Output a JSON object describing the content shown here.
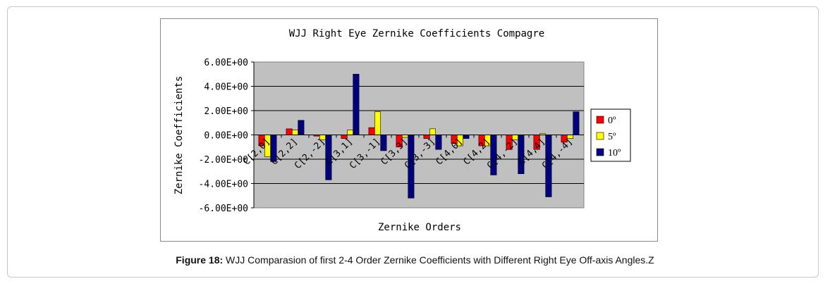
{
  "caption": {
    "label": "Figure 18:",
    "text": "WJJ Comparasion of first 2-4 Order Zernike Coefficients with Different Right Eye Off-axis Angles.Z"
  },
  "chart_data": {
    "type": "bar",
    "title": "WJJ Right Eye Zernike Coefficients Compagre",
    "xlabel": "Zernike Orders",
    "ylabel": "Zernike Coefficients",
    "ylim": [
      -6,
      6
    ],
    "yticks": [
      6,
      4,
      2,
      0,
      -2,
      -4,
      -6
    ],
    "ytick_labels": [
      "6.00E+00",
      "4.00E+00",
      "2.00E+00",
      "0.00E+00",
      "-2.00E+00",
      "-4.00E+00",
      "-6.00E+00"
    ],
    "grid": true,
    "legend_position": "right",
    "categories": [
      "C[2,0]",
      "C[2,2]",
      "C[2,-2]",
      "C[3,1]",
      "C[3,-1]",
      "C[3,3]",
      "C[3,-3]",
      "C[4,0]",
      "C[4,2]",
      "C[4,-2]",
      "C[4,4]",
      "C[4,-4]"
    ],
    "series": [
      {
        "name": "0º",
        "color": "#ff0000",
        "values": [
          -0.9,
          0.5,
          -0.1,
          -0.3,
          0.6,
          -1.0,
          -0.3,
          -0.7,
          -0.9,
          -1.2,
          -1.2,
          -0.6
        ]
      },
      {
        "name": "5º",
        "color": "#ffff00",
        "values": [
          -1.8,
          0.4,
          -0.4,
          0.4,
          1.9,
          -0.2,
          0.5,
          -0.9,
          -0.9,
          -0.4,
          0.1,
          -0.3
        ]
      },
      {
        "name": "10º",
        "color": "#000080",
        "values": [
          -2.2,
          1.2,
          -3.7,
          5.0,
          -1.3,
          -5.2,
          -1.2,
          -0.3,
          -3.3,
          -3.2,
          -5.1,
          1.9
        ]
      }
    ]
  }
}
